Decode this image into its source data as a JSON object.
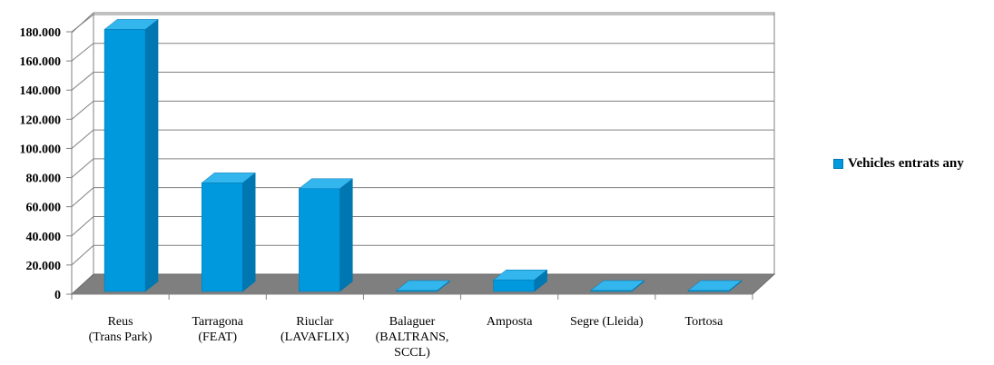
{
  "chart_data": {
    "type": "bar",
    "three_d": true,
    "categories": [
      [
        "Reus",
        "(Trans Park)"
      ],
      [
        "Tarragona",
        "(FEAT)"
      ],
      [
        "Riuclar",
        "(LAVAFLIX)"
      ],
      [
        "Balaguer",
        "(BALTRANS,",
        "SCCL)"
      ],
      [
        "Amposta"
      ],
      [
        "Segre (Lleida)"
      ],
      [
        "Tortosa"
      ]
    ],
    "series": [
      {
        "name": "Vehicles entrats any",
        "values": [
          181000,
          75000,
          71000,
          0,
          8000,
          0,
          0
        ]
      }
    ],
    "yticks": [
      "0",
      "20.000",
      "40.000",
      "60.000",
      "80.000",
      "100.000",
      "120.000",
      "140.000",
      "160.000",
      "180.000"
    ],
    "ylim": [
      0,
      180000
    ],
    "grid": true,
    "legend_position": "right",
    "colors": {
      "bar_front": "#0099dd",
      "bar_side": "#0077b0",
      "bar_top": "#33b5ee",
      "floor": "#7f7f7f",
      "grid": "#808080"
    }
  }
}
